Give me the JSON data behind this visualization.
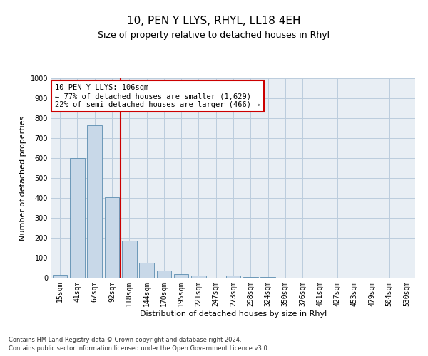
{
  "title": "10, PEN Y LLYS, RHYL, LL18 4EH",
  "subtitle": "Size of property relative to detached houses in Rhyl",
  "xlabel": "Distribution of detached houses by size in Rhyl",
  "ylabel": "Number of detached properties",
  "footnote1": "Contains HM Land Registry data © Crown copyright and database right 2024.",
  "footnote2": "Contains public sector information licensed under the Open Government Licence v3.0.",
  "categories": [
    "15sqm",
    "41sqm",
    "67sqm",
    "92sqm",
    "118sqm",
    "144sqm",
    "170sqm",
    "195sqm",
    "221sqm",
    "247sqm",
    "273sqm",
    "298sqm",
    "324sqm",
    "350sqm",
    "376sqm",
    "401sqm",
    "427sqm",
    "453sqm",
    "479sqm",
    "504sqm",
    "530sqm"
  ],
  "values": [
    15,
    600,
    765,
    405,
    185,
    75,
    37,
    17,
    10,
    0,
    12,
    5,
    2,
    1,
    0,
    0,
    0,
    0,
    0,
    0,
    0
  ],
  "bar_color": "#c8d8e8",
  "bar_edge_color": "#5b8db0",
  "red_line_x": 3.5,
  "annotation_text": "10 PEN Y LLYS: 106sqm\n← 77% of detached houses are smaller (1,629)\n22% of semi-detached houses are larger (466) →",
  "annotation_box_color": "#ffffff",
  "annotation_box_edge": "#cc0000",
  "ylim": [
    0,
    1000
  ],
  "yticks": [
    0,
    100,
    200,
    300,
    400,
    500,
    600,
    700,
    800,
    900,
    1000
  ],
  "grid_color": "#bbccdd",
  "bg_color": "#e8eef4",
  "title_fontsize": 11,
  "subtitle_fontsize": 9,
  "tick_fontsize": 7,
  "ylabel_fontsize": 8,
  "xlabel_fontsize": 8,
  "annot_fontsize": 7.5,
  "footnote_fontsize": 6
}
